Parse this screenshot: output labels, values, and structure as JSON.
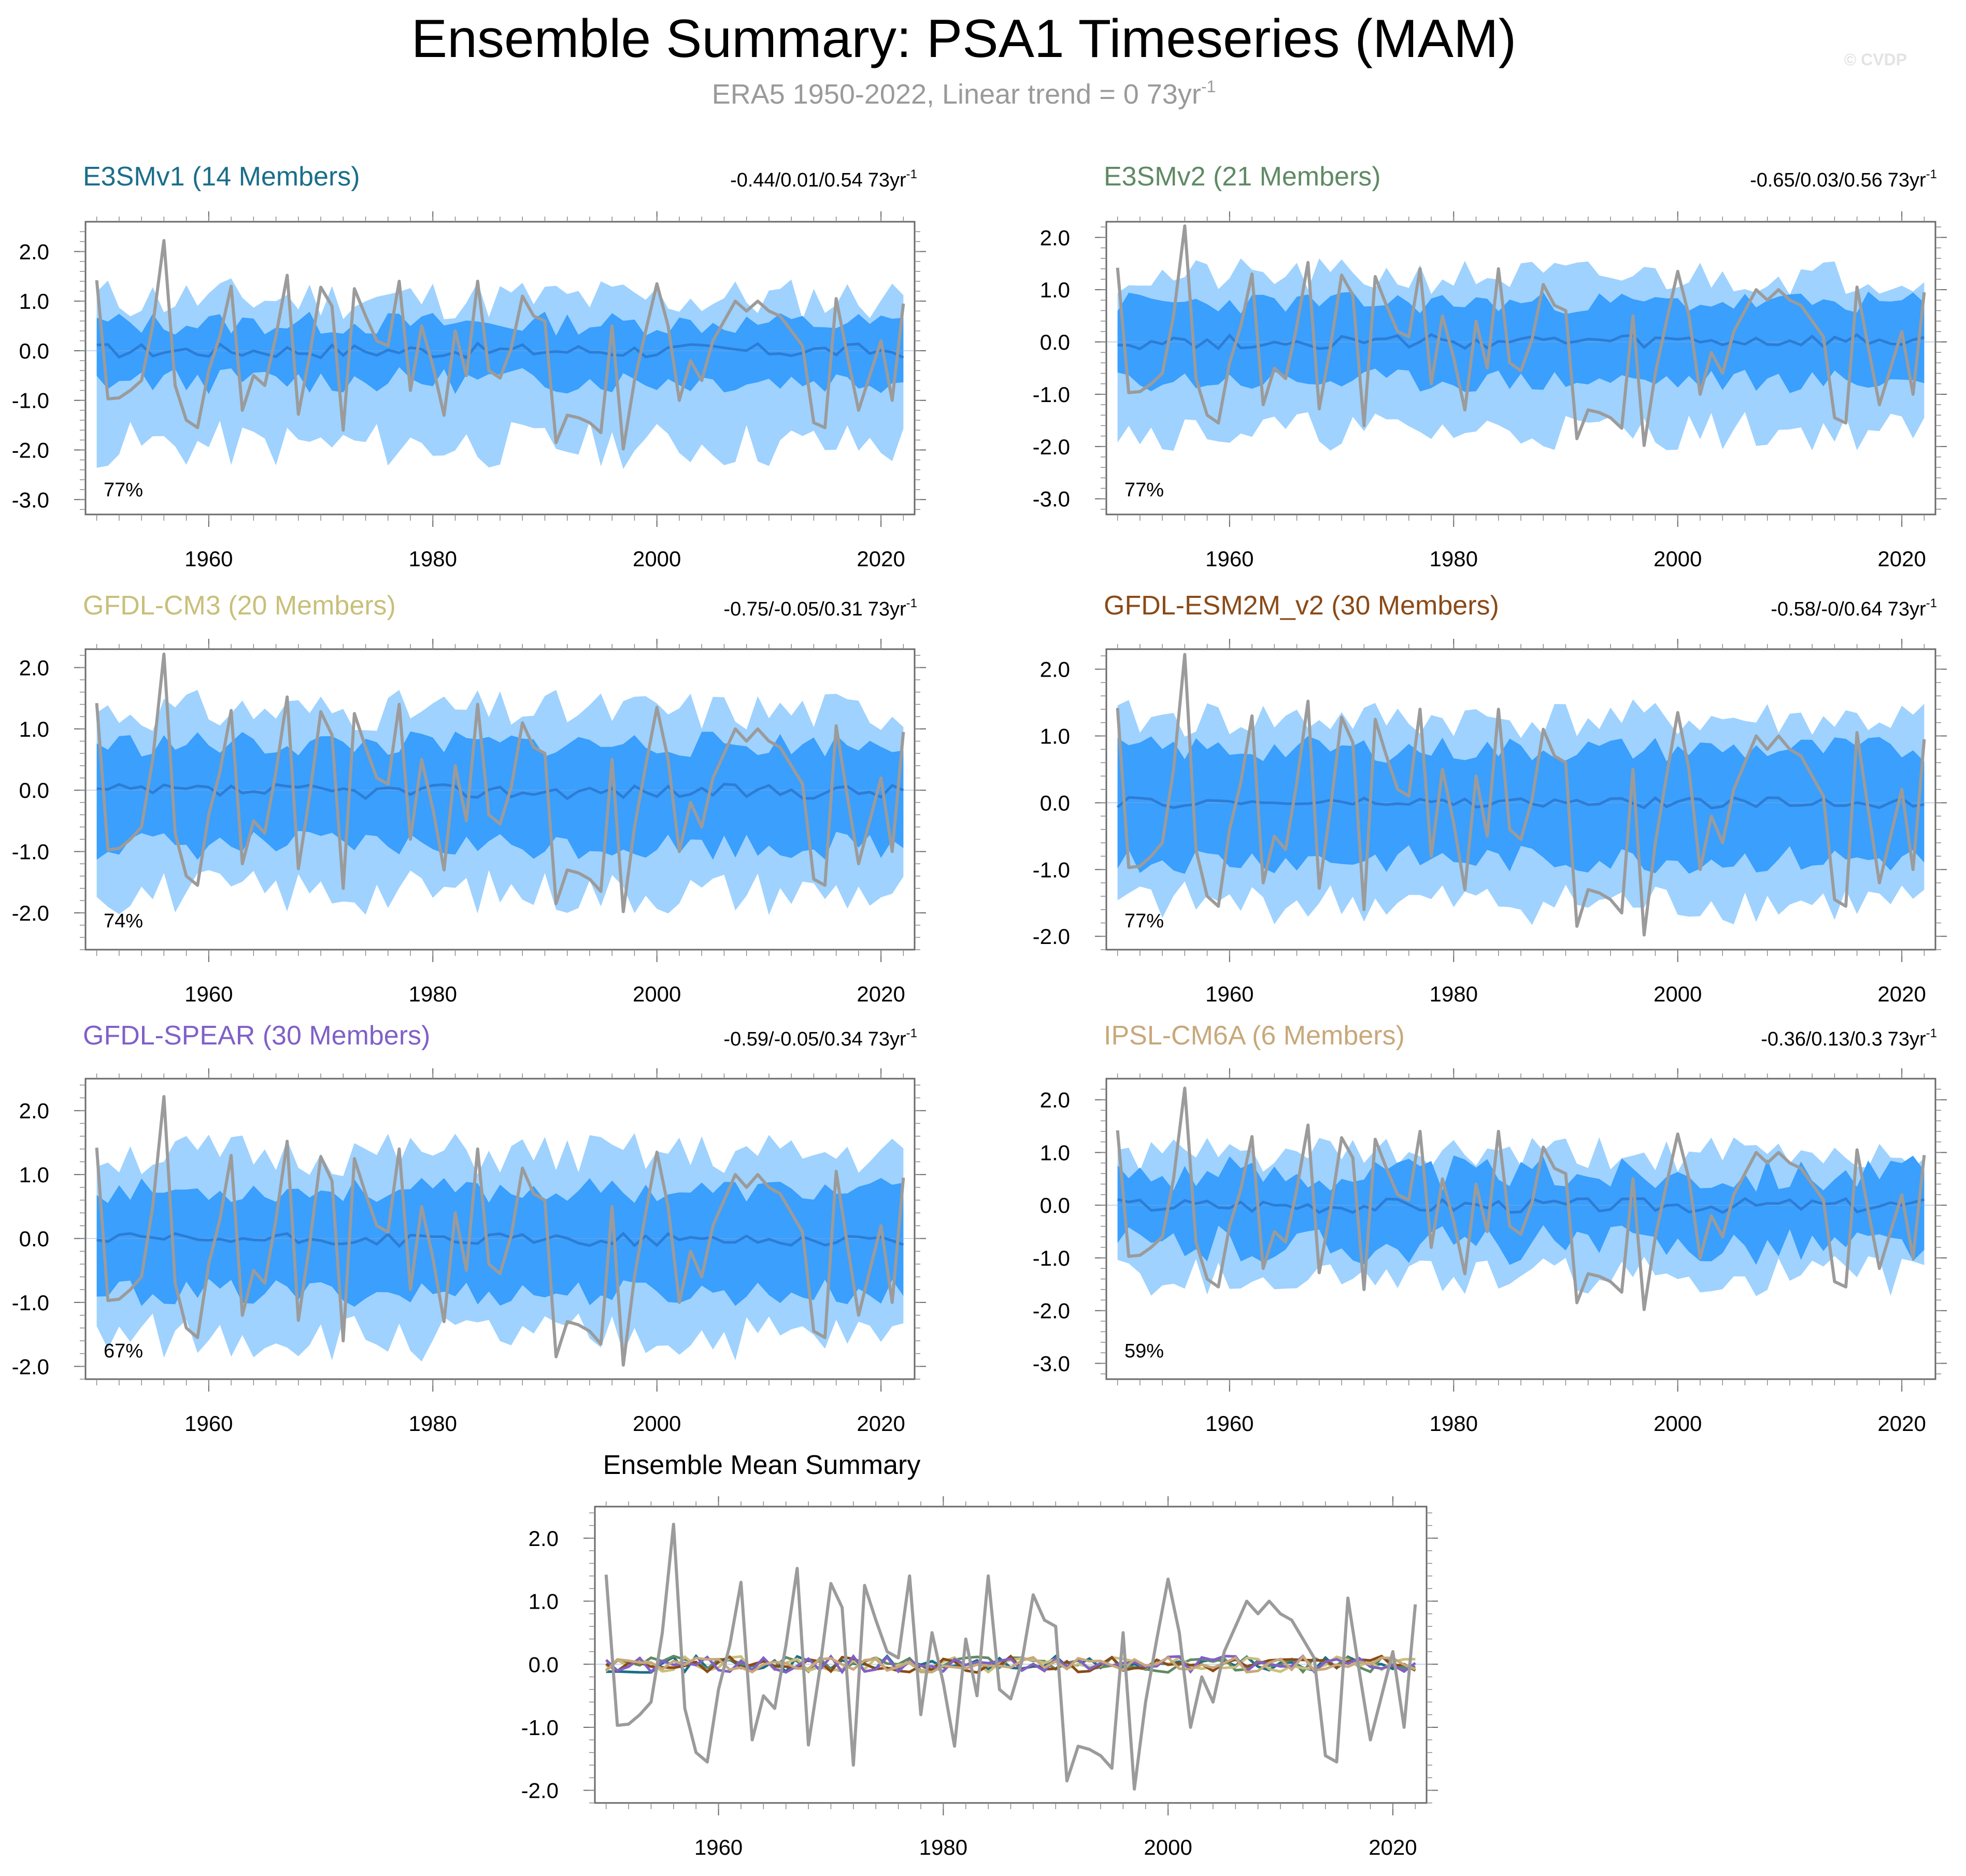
{
  "title": "Ensemble Summary: PSA1 Timeseries (MAM)",
  "subtitle": "ERA5 1950-2022, Linear trend = 0 73yr",
  "subtitle_sup": "-1",
  "watermark": "© CVDP",
  "trend_unit": "73yr",
  "trend_unit_sup": "-1",
  "colors": {
    "outer_band": "#9fd2fe",
    "inner_band": "#3a9ffd",
    "ensemble_mean": "#2c7dd6",
    "observed": "#9b9b9b"
  },
  "chart_data": [
    {
      "type": "line",
      "title": "E3SMv1 (14 Members)",
      "title_color": "#1a6e8a",
      "trend_text": "-0.44/0.01/0.54",
      "percent_label": "77%",
      "xlim": [
        1949,
        2023
      ],
      "ylim": [
        -3.3,
        2.6
      ],
      "yticks": [
        -3.0,
        -2.0,
        -1.0,
        0.0,
        1.0,
        2.0
      ],
      "ytick_labels": [
        "-3.0",
        "-2.0",
        "-1.0",
        "0.0",
        "1.0",
        "2.0"
      ],
      "xticks": [
        1960,
        1980,
        2000,
        2020
      ],
      "xtick_labels": [
        "1960",
        "1980",
        "2000",
        "2020"
      ],
      "band_outer": {
        "upper_level": 1.05,
        "lower_level": -1.9,
        "spread": 0.45,
        "seed": 11
      },
      "band_inner": {
        "upper_level": 0.55,
        "lower_level": -0.6,
        "spread": 0.25,
        "seed": 13
      },
      "mean_level": 0.0,
      "mean_spread": 0.15,
      "mean_seed": 17
    },
    {
      "type": "line",
      "title": "E3SMv2 (21 Members)",
      "title_color": "#5f8a64",
      "trend_text": "-0.65/0.03/0.56",
      "percent_label": "77%",
      "xlim": [
        1949,
        2023
      ],
      "ylim": [
        -3.3,
        2.3
      ],
      "yticks": [
        -3.0,
        -2.0,
        -1.0,
        0.0,
        1.0,
        2.0
      ],
      "ytick_labels": [
        "-3.0",
        "-2.0",
        "-1.0",
        "0.0",
        "1.0",
        "2.0"
      ],
      "xticks": [
        1960,
        1980,
        2000,
        2020
      ],
      "xtick_labels": [
        "1960",
        "1980",
        "2000",
        "2020"
      ],
      "band_outer": {
        "upper_level": 1.25,
        "lower_level": -1.7,
        "spread": 0.35,
        "seed": 21
      },
      "band_inner": {
        "upper_level": 0.75,
        "lower_level": -0.75,
        "spread": 0.22,
        "seed": 23
      },
      "mean_level": 0.0,
      "mean_spread": 0.14,
      "mean_seed": 27
    },
    {
      "type": "line",
      "title": "GFDL-CM3 (20 Members)",
      "title_color": "#c9bf7a",
      "trend_text": "-0.75/-0.05/0.31",
      "percent_label": "74%",
      "xlim": [
        1949,
        2023
      ],
      "ylim": [
        -2.6,
        2.3
      ],
      "yticks": [
        -2.0,
        -1.0,
        0.0,
        1.0,
        2.0
      ],
      "ytick_labels": [
        "-2.0",
        "-1.0",
        "0.0",
        "1.0",
        "2.0"
      ],
      "xticks": [
        1960,
        1980,
        2000,
        2020
      ],
      "xtick_labels": [
        "1960",
        "1980",
        "2000",
        "2020"
      ],
      "band_outer": {
        "upper_level": 1.3,
        "lower_level": -1.65,
        "spread": 0.35,
        "seed": 31
      },
      "band_inner": {
        "upper_level": 0.75,
        "lower_level": -0.9,
        "spread": 0.22,
        "seed": 33
      },
      "mean_level": -0.02,
      "mean_spread": 0.12,
      "mean_seed": 37
    },
    {
      "type": "line",
      "title": "GFDL-ESM2M_v2 (30 Members)",
      "title_color": "#8a4a17",
      "trend_text": "-0.58/-0/0.64",
      "percent_label": "77%",
      "xlim": [
        1949,
        2023
      ],
      "ylim": [
        -2.2,
        2.3
      ],
      "yticks": [
        -2.0,
        -1.0,
        0.0,
        1.0,
        2.0
      ],
      "ytick_labels": [
        "-2.0",
        "-1.0",
        "0.0",
        "1.0",
        "2.0"
      ],
      "xticks": [
        1960,
        1980,
        2000,
        2020
      ],
      "xtick_labels": [
        "1960",
        "1980",
        "2000",
        "2020"
      ],
      "band_outer": {
        "upper_level": 1.25,
        "lower_level": -1.5,
        "spread": 0.3,
        "seed": 41
      },
      "band_inner": {
        "upper_level": 0.8,
        "lower_level": -0.85,
        "spread": 0.2,
        "seed": 43
      },
      "mean_level": 0.0,
      "mean_spread": 0.08,
      "mean_seed": 47
    },
    {
      "type": "line",
      "title": "GFDL-SPEAR (30 Members)",
      "title_color": "#8060c8",
      "trend_text": "-0.59/-0.05/0.34",
      "percent_label": "67%",
      "xlim": [
        1949,
        2023
      ],
      "ylim": [
        -2.2,
        2.5
      ],
      "yticks": [
        -2.0,
        -1.0,
        0.0,
        1.0,
        2.0
      ],
      "ytick_labels": [
        "-2.0",
        "-1.0",
        "0.0",
        "1.0",
        "2.0"
      ],
      "xticks": [
        1960,
        1980,
        2000,
        2020
      ],
      "xtick_labels": [
        "1960",
        "1980",
        "2000",
        "2020"
      ],
      "band_outer": {
        "upper_level": 1.3,
        "lower_level": -1.55,
        "spread": 0.35,
        "seed": 51
      },
      "band_inner": {
        "upper_level": 0.75,
        "lower_level": -0.85,
        "spread": 0.2,
        "seed": 53
      },
      "mean_level": -0.02,
      "mean_spread": 0.1,
      "mean_seed": 57
    },
    {
      "type": "line",
      "title": "IPSL-CM6A (6 Members)",
      "title_color": "#c8a87a",
      "trend_text": "-0.36/0.13/0.3",
      "percent_label": "59%",
      "xlim": [
        1949,
        2023
      ],
      "ylim": [
        -3.3,
        2.4
      ],
      "yticks": [
        -3.0,
        -2.0,
        -1.0,
        0.0,
        1.0,
        2.0
      ],
      "ytick_labels": [
        "-3.0",
        "-2.0",
        "-1.0",
        "0.0",
        "1.0",
        "2.0"
      ],
      "xticks": [
        1960,
        1980,
        2000,
        2020
      ],
      "xtick_labels": [
        "1960",
        "1980",
        "2000",
        "2020"
      ],
      "band_outer": {
        "upper_level": 0.95,
        "lower_level": -1.35,
        "spread": 0.35,
        "seed": 61
      },
      "band_inner": {
        "upper_level": 0.6,
        "lower_level": -0.75,
        "spread": 0.35,
        "seed": 63
      },
      "mean_level": 0.0,
      "mean_spread": 0.14,
      "mean_seed": 67
    },
    {
      "type": "line",
      "title": "Ensemble Mean Summary",
      "xlim": [
        1949,
        2023
      ],
      "ylim": [
        -2.2,
        2.5
      ],
      "yticks": [
        -2.0,
        -1.0,
        0.0,
        1.0,
        2.0
      ],
      "ytick_labels": [
        "-2.0",
        "-1.0",
        "0.0",
        "1.0",
        "2.0"
      ],
      "xticks": [
        1960,
        1980,
        2000,
        2020
      ],
      "xtick_labels": [
        "1960",
        "1980",
        "2000",
        "2020"
      ],
      "series_colors": [
        "#1a6e8a",
        "#5f8a64",
        "#c9bf7a",
        "#8a4a17",
        "#8060c8",
        "#c8a87a"
      ],
      "series_seeds": [
        71,
        73,
        79,
        83,
        89,
        97
      ],
      "series_spread": 0.13
    }
  ],
  "observed": {
    "name": "ERA5",
    "years_start": 1950,
    "years_end": 2022,
    "values": [
      1.42,
      -0.97,
      -0.95,
      -0.8,
      -0.6,
      0.5,
      2.22,
      -0.7,
      -1.4,
      -1.55,
      -0.4,
      0.3,
      1.3,
      -1.2,
      -0.5,
      -0.7,
      0.3,
      1.52,
      -1.28,
      -0.1,
      1.28,
      0.9,
      -1.6,
      1.25,
      0.7,
      0.2,
      0.1,
      1.4,
      -0.8,
      0.5,
      -0.3,
      -1.3,
      0.4,
      -0.5,
      1.4,
      -0.4,
      -0.55,
      0.05,
      1.1,
      0.7,
      0.6,
      -1.85,
      -1.3,
      -1.35,
      -1.45,
      -1.65,
      0.5,
      -1.98,
      -0.6,
      0.4,
      1.35,
      0.5,
      -1.0,
      -0.2,
      -0.6,
      0.2,
      0.6,
      1.0,
      0.8,
      1.0,
      0.8,
      0.7,
      0.4,
      0.1,
      -1.45,
      -1.55,
      1.05,
      -0.1,
      -1.2,
      -0.5,
      0.2,
      -1.0,
      0.95
    ]
  }
}
